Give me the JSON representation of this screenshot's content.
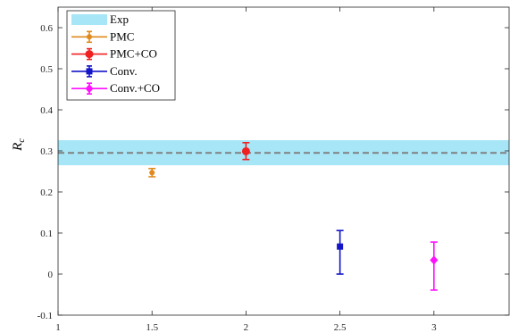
{
  "chart_data": {
    "type": "scatter",
    "title": "",
    "xlabel": "",
    "ylabel": "R",
    "ylabel_subscript": "c",
    "xlim": [
      1,
      3.4
    ],
    "ylim": [
      -0.1,
      0.65
    ],
    "xticks": [
      1,
      1.5,
      2,
      2.5,
      3
    ],
    "xtick_labels": [
      "1",
      "1.5",
      "2",
      "2.5",
      "3"
    ],
    "yticks": [
      -0.1,
      0,
      0.1,
      0.2,
      0.3,
      0.4,
      0.5,
      0.6
    ],
    "ytick_labels": [
      "-0.1",
      "0",
      "0.1",
      "0.2",
      "0.3",
      "0.4",
      "0.5",
      "0.6"
    ],
    "grid": false,
    "legend_position": "top-left",
    "band": {
      "name": "Exp",
      "center": 0.295,
      "low": 0.265,
      "high": 0.326,
      "fill_color": "#a6e6f7",
      "line_color": "#808080"
    },
    "series": [
      {
        "name": "PMC",
        "x": 1.5,
        "y": 0.247,
        "err_low": 0.237,
        "err_high": 0.257,
        "color": "#e08a1e",
        "marker": "circle-small"
      },
      {
        "name": "PMC+CO",
        "x": 2.0,
        "y": 0.299,
        "err_low": 0.279,
        "err_high": 0.32,
        "color": "#f02020",
        "marker": "circle"
      },
      {
        "name": "Conv.",
        "x": 2.5,
        "y": 0.067,
        "err_low": 0.0,
        "err_high": 0.106,
        "color": "#1414c8",
        "marker": "square"
      },
      {
        "name": "Conv.+CO",
        "x": 3.0,
        "y": 0.034,
        "err_low": -0.039,
        "err_high": 0.078,
        "color": "#ff10ff",
        "marker": "diamond"
      }
    ]
  }
}
